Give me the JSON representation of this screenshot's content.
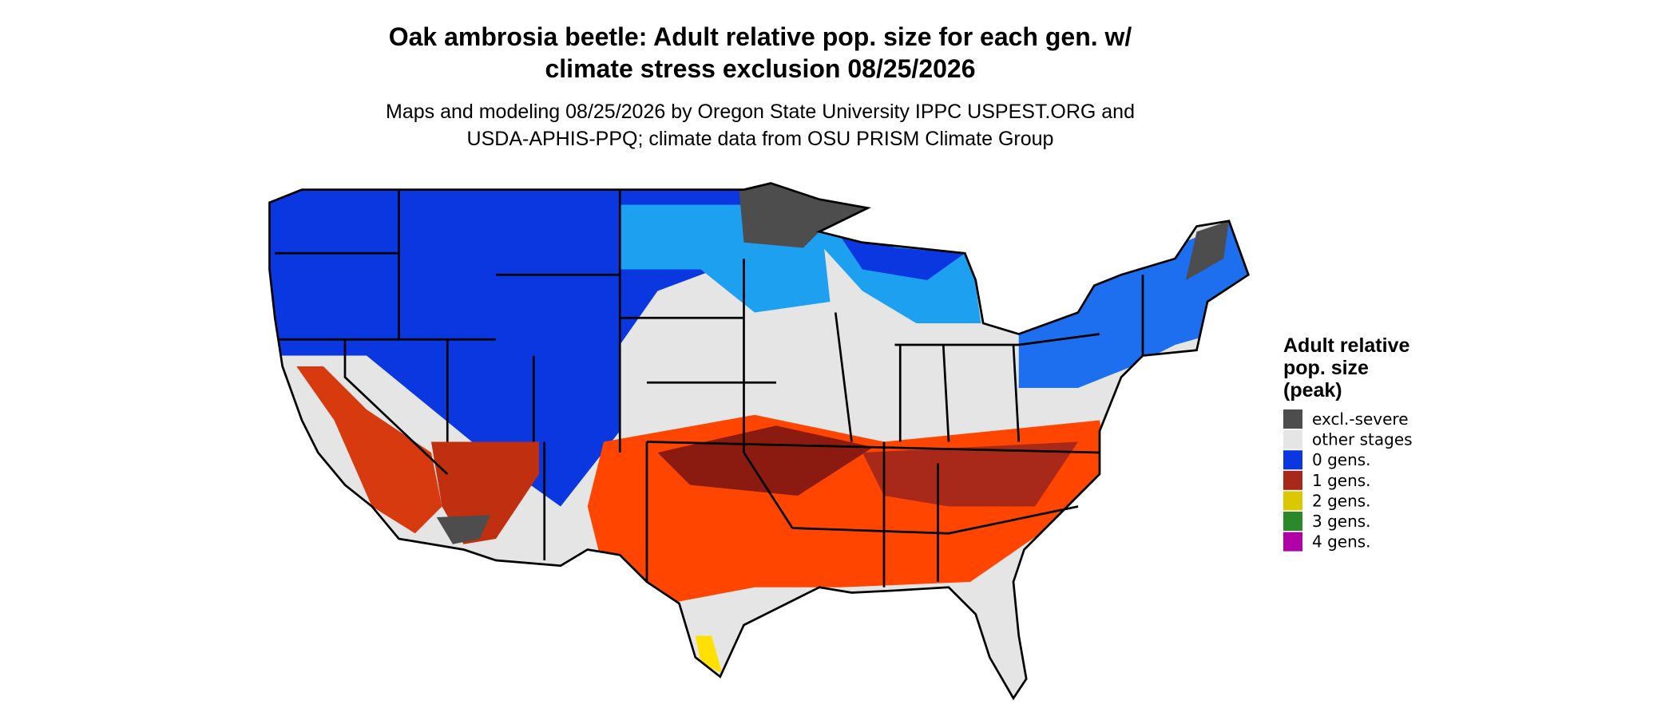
{
  "header": {
    "title": [
      "Oak ambrosia beetle: Adult relative pop. size for each gen. w/",
      "climate stress exclusion 08/25/2026"
    ],
    "subtitle": [
      "Maps and modeling 08/25/2026 by Oregon State University IPPC USPEST.ORG and",
      "USDA-APHIS-PPQ; climate data from OSU PRISM Climate Group"
    ]
  },
  "legend": {
    "title": [
      "Adult relative",
      "pop. size",
      "(peak)"
    ],
    "items": [
      {
        "label": "excl.-severe",
        "color": "#4d4d4d"
      },
      {
        "label": "other stages",
        "color": "#e5e5e5"
      },
      {
        "label": "0 gens.",
        "color": "#0a37e0"
      },
      {
        "label": "1 gens.",
        "color": "#a8281a"
      },
      {
        "label": "2 gens.",
        "color": "#dcc800"
      },
      {
        "label": "3 gens.",
        "color": "#2a8a2a"
      },
      {
        "label": "4 gens.",
        "color": "#b000a8"
      }
    ]
  }
}
